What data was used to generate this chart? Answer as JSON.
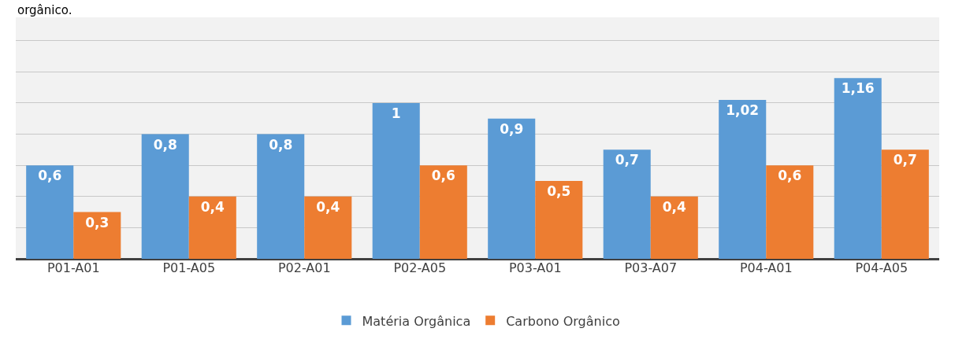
{
  "chart_data": {
    "type": "bar",
    "annotations": [
      "orgânico."
    ],
    "categories": [
      "P01-A01",
      "P01-A05",
      "P02-A01",
      "P02-A05",
      "P03-A01",
      "P03-A07",
      "P04-A01",
      "P04-A05"
    ],
    "series": [
      {
        "name": "Matéria Orgânica",
        "color": "#5b9bd5",
        "values": [
          0.6,
          0.8,
          0.8,
          1,
          0.9,
          0.7,
          1.02,
          1.16
        ],
        "value_labels": [
          "0,6",
          "0,8",
          "0,8",
          "1",
          "0,9",
          "0,7",
          "1,02",
          "1,16"
        ]
      },
      {
        "name": "Carbono Orgânico",
        "color": "#ed7d31",
        "values": [
          0.3,
          0.4,
          0.4,
          0.6,
          0.5,
          0.4,
          0.6,
          0.7
        ],
        "value_labels": [
          "0,3",
          "0,4",
          "0,4",
          "0,6",
          "0,5",
          "0,4",
          "0,6",
          "0,7"
        ]
      }
    ],
    "ylim": [
      0,
      1.55
    ],
    "yticks": [
      {
        "value": 0,
        "label": null
      },
      {
        "value": 0.2,
        "label": null
      },
      {
        "value": 0.4,
        "label": null
      },
      {
        "value": 0.6,
        "label": null
      },
      {
        "value": 0.8,
        "label": null
      },
      {
        "value": 1.0,
        "label": null
      },
      {
        "value": 1.2,
        "label": null
      },
      {
        "value": 1.4,
        "label": null
      }
    ],
    "tick_labels": "x",
    "grid": "y",
    "legend": "bottom"
  }
}
